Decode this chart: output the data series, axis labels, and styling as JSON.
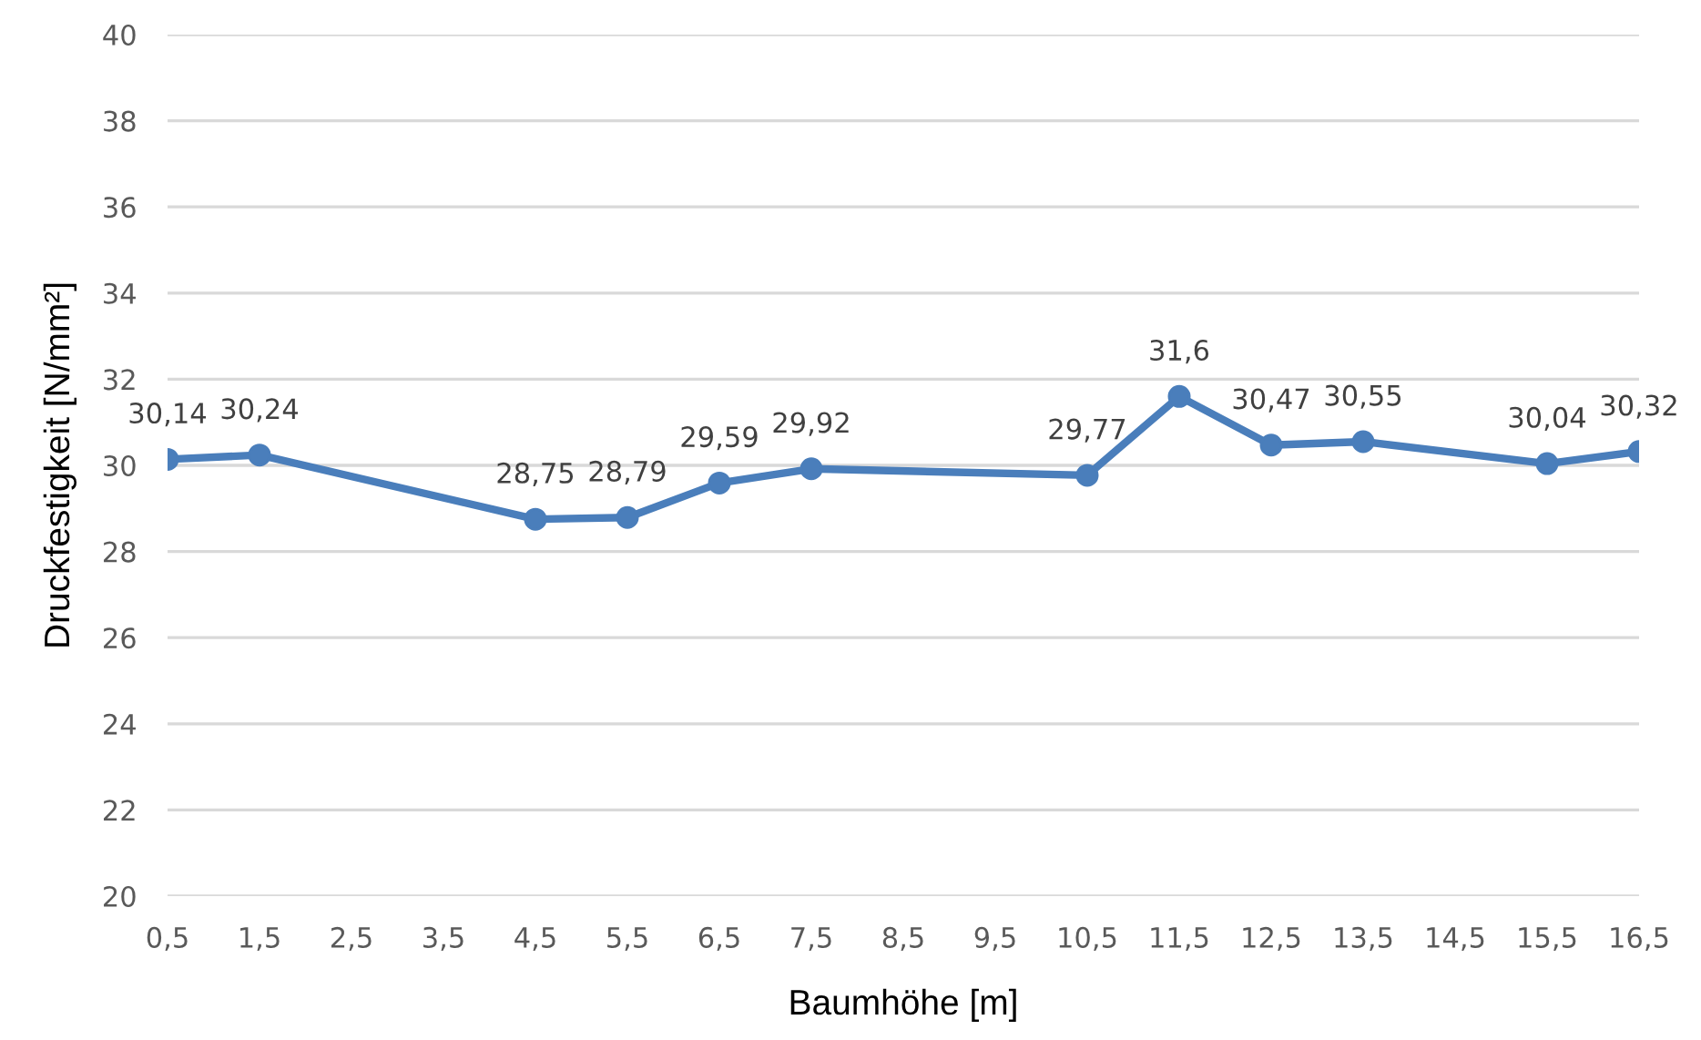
{
  "chart_data": {
    "type": "line",
    "xlabel": "Baumhöhe [m]",
    "ylabel": "Druckfestigkeit [N/mm²]",
    "x": [
      0.5,
      1.5,
      4.5,
      5.5,
      6.5,
      7.5,
      10.5,
      11.5,
      12.5,
      13.5,
      15.5,
      16.5
    ],
    "series": [
      {
        "color": "#4a7ebb",
        "values": [
          30.14,
          30.24,
          28.75,
          28.79,
          29.59,
          29.92,
          29.77,
          31.6,
          30.47,
          30.55,
          30.04,
          30.32
        ],
        "value_labels": [
          "30,14",
          "30,24",
          "28,75",
          "28,79",
          "29,59",
          "29,92",
          "29,77",
          "31,6",
          "30,47",
          "30,55",
          "30,04",
          "30,32"
        ]
      }
    ],
    "xlim": [
      0.5,
      16.5
    ],
    "xticks": [
      {
        "value": 0.5,
        "label": "0,5"
      },
      {
        "value": 1.5,
        "label": "1,5"
      },
      {
        "value": 2.5,
        "label": "2,5"
      },
      {
        "value": 3.5,
        "label": "3,5"
      },
      {
        "value": 4.5,
        "label": "4,5"
      },
      {
        "value": 5.5,
        "label": "5,5"
      },
      {
        "value": 6.5,
        "label": "6,5"
      },
      {
        "value": 7.5,
        "label": "7,5"
      },
      {
        "value": 8.5,
        "label": "8,5"
      },
      {
        "value": 9.5,
        "label": "9,5"
      },
      {
        "value": 10.5,
        "label": "10,5"
      },
      {
        "value": 11.5,
        "label": "11,5"
      },
      {
        "value": 12.5,
        "label": "12,5"
      },
      {
        "value": 13.5,
        "label": "13,5"
      },
      {
        "value": 14.5,
        "label": "14,5"
      },
      {
        "value": 15.5,
        "label": "15,5"
      },
      {
        "value": 16.5,
        "label": "16,5"
      }
    ],
    "ylim": [
      20,
      40
    ],
    "yticks": [
      20,
      22,
      24,
      26,
      28,
      30,
      32,
      34,
      36,
      38,
      40
    ],
    "grid": "y",
    "marker": "circle",
    "line_style": "solid",
    "legend": false
  }
}
